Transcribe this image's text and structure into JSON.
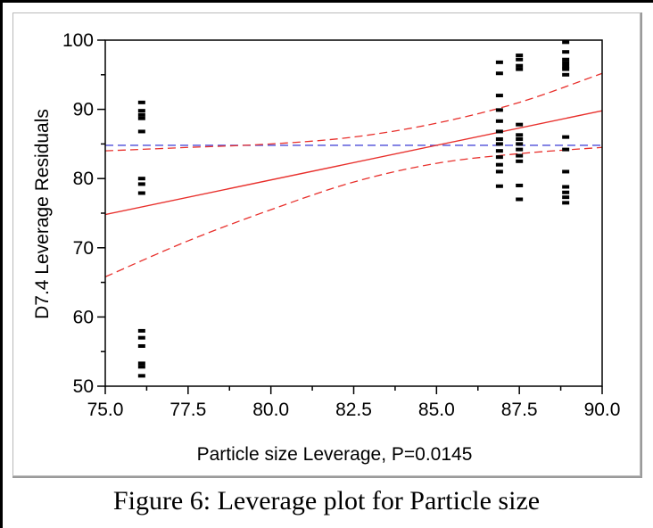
{
  "caption": "Figure 6: Leverage plot for Particle size",
  "chart_data": {
    "type": "scatter",
    "xlabel": "Particle size Leverage, P=0.0145",
    "ylabel": "D7.4 Leverage Residuals",
    "xlim": [
      75.0,
      90.0
    ],
    "ylim": [
      50,
      100
    ],
    "x_ticks": [
      "75.0",
      "77.5",
      "80.0",
      "82.5",
      "85.0",
      "87.5",
      "90.0"
    ],
    "y_ticks": [
      "50",
      "60",
      "70",
      "80",
      "90",
      "100"
    ],
    "grid": false,
    "points": [
      {
        "x": 76.1,
        "y": 91.0
      },
      {
        "x": 76.1,
        "y": 89.8
      },
      {
        "x": 76.1,
        "y": 89.2
      },
      {
        "x": 76.1,
        "y": 88.7
      },
      {
        "x": 76.1,
        "y": 86.8
      },
      {
        "x": 76.1,
        "y": 80.0
      },
      {
        "x": 76.1,
        "y": 79.2
      },
      {
        "x": 76.1,
        "y": 77.9
      },
      {
        "x": 76.1,
        "y": 58.0
      },
      {
        "x": 76.1,
        "y": 57.0
      },
      {
        "x": 76.1,
        "y": 55.8
      },
      {
        "x": 76.1,
        "y": 53.3
      },
      {
        "x": 76.1,
        "y": 52.8
      },
      {
        "x": 76.1,
        "y": 51.5
      },
      {
        "x": 86.9,
        "y": 96.8
      },
      {
        "x": 86.9,
        "y": 95.2
      },
      {
        "x": 86.9,
        "y": 92.0
      },
      {
        "x": 86.9,
        "y": 89.9
      },
      {
        "x": 86.9,
        "y": 88.3
      },
      {
        "x": 86.9,
        "y": 86.8
      },
      {
        "x": 86.9,
        "y": 85.7
      },
      {
        "x": 86.9,
        "y": 85.0
      },
      {
        "x": 86.9,
        "y": 84.0
      },
      {
        "x": 86.9,
        "y": 83.1
      },
      {
        "x": 86.9,
        "y": 82.0
      },
      {
        "x": 86.9,
        "y": 81.0
      },
      {
        "x": 86.9,
        "y": 78.9
      },
      {
        "x": 87.5,
        "y": 97.8
      },
      {
        "x": 87.5,
        "y": 97.2
      },
      {
        "x": 87.5,
        "y": 96.3
      },
      {
        "x": 87.5,
        "y": 95.8
      },
      {
        "x": 87.5,
        "y": 87.8
      },
      {
        "x": 87.5,
        "y": 86.3
      },
      {
        "x": 87.5,
        "y": 85.7
      },
      {
        "x": 87.5,
        "y": 85.0
      },
      {
        "x": 87.5,
        "y": 84.2
      },
      {
        "x": 87.5,
        "y": 83.3
      },
      {
        "x": 87.5,
        "y": 82.5
      },
      {
        "x": 87.5,
        "y": 79.0
      },
      {
        "x": 87.5,
        "y": 77.0
      },
      {
        "x": 88.9,
        "y": 99.7
      },
      {
        "x": 88.9,
        "y": 98.3
      },
      {
        "x": 88.9,
        "y": 97.2
      },
      {
        "x": 88.9,
        "y": 96.7
      },
      {
        "x": 88.9,
        "y": 96.2
      },
      {
        "x": 88.9,
        "y": 95.8
      },
      {
        "x": 88.9,
        "y": 95.0
      },
      {
        "x": 88.9,
        "y": 86.0
      },
      {
        "x": 88.9,
        "y": 84.2
      },
      {
        "x": 88.9,
        "y": 81.0
      },
      {
        "x": 88.9,
        "y": 78.8
      },
      {
        "x": 88.9,
        "y": 78.0
      },
      {
        "x": 88.9,
        "y": 77.3
      },
      {
        "x": 88.9,
        "y": 76.5
      }
    ],
    "fit_line": {
      "x": [
        75.0,
        90.0
      ],
      "y": [
        74.8,
        89.8
      ],
      "color": "#e8302c"
    },
    "confidence_upper": {
      "x": [
        75.0,
        77.5,
        80.0,
        82.5,
        85.0,
        87.5,
        90.0
      ],
      "y": [
        84.0,
        84.5,
        85.0,
        86.0,
        88.0,
        91.0,
        95.2
      ],
      "color": "#e8302c"
    },
    "confidence_lower": {
      "x": [
        75.0,
        77.5,
        80.0,
        82.5,
        85.0,
        87.5,
        90.0
      ],
      "y": [
        65.8,
        71.0,
        75.5,
        79.5,
        82.2,
        83.6,
        84.5
      ],
      "color": "#e8302c"
    },
    "mean_line": {
      "y": 84.8,
      "color": "#4a4ad8"
    }
  }
}
